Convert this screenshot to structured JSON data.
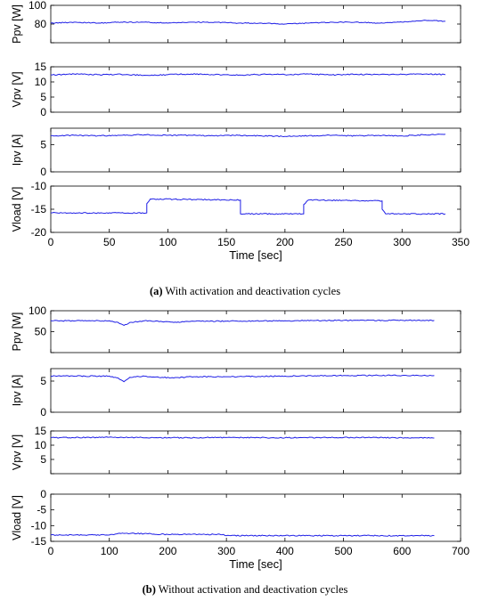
{
  "colors": {
    "series": "#1f1fe6",
    "axis": "#000000",
    "background": "#ffffff"
  },
  "chart_data": [
    {
      "type": "line",
      "panel": "a",
      "ylabel": "Ppv [W]",
      "ylim": [
        60,
        100
      ],
      "yticks": [
        60,
        80,
        100
      ],
      "ytick_labels": [
        "",
        "80",
        "100"
      ],
      "xlim": [
        0,
        350
      ],
      "x": [
        0,
        20,
        40,
        60,
        80,
        100,
        120,
        140,
        160,
        180,
        200,
        220,
        240,
        260,
        280,
        300,
        320,
        337
      ],
      "series": [
        {
          "values": [
            81,
            82,
            81,
            82,
            82,
            81,
            82,
            82,
            81,
            81,
            80,
            81,
            82,
            82,
            81,
            82,
            84,
            83
          ]
        }
      ]
    },
    {
      "type": "line",
      "panel": "a",
      "ylabel": "Vpv [V]",
      "ylim": [
        0,
        15
      ],
      "yticks": [
        0,
        5,
        10,
        15
      ],
      "ytick_labels": [
        "0",
        "5",
        "10",
        "15"
      ],
      "xlim": [
        0,
        350
      ],
      "x": [
        0,
        20,
        40,
        60,
        80,
        100,
        120,
        140,
        160,
        180,
        200,
        220,
        240,
        260,
        280,
        300,
        320,
        337
      ],
      "series": [
        {
          "values": [
            12.3,
            12.6,
            12.4,
            12.5,
            12.2,
            12.4,
            12.6,
            12.4,
            12.2,
            12.5,
            12.4,
            12.6,
            12.3,
            12.5,
            12.4,
            12.5,
            12.6,
            12.4
          ]
        }
      ]
    },
    {
      "type": "line",
      "panel": "a",
      "ylabel": "Ipv [A]",
      "ylim": [
        0,
        8
      ],
      "yticks": [
        0,
        5
      ],
      "ytick_labels": [
        "0",
        "5"
      ],
      "xlim": [
        0,
        350
      ],
      "x": [
        0,
        20,
        40,
        60,
        80,
        100,
        120,
        140,
        160,
        180,
        200,
        220,
        240,
        260,
        280,
        300,
        320,
        337
      ],
      "series": [
        {
          "values": [
            6.6,
            6.7,
            6.6,
            6.7,
            6.8,
            6.7,
            6.7,
            6.6,
            6.7,
            6.6,
            6.5,
            6.6,
            6.7,
            6.6,
            6.7,
            6.6,
            6.8,
            6.9
          ]
        }
      ]
    },
    {
      "type": "line",
      "panel": "a",
      "ylabel": "Vload [V]",
      "ylim": [
        -20,
        -10
      ],
      "yticks": [
        -20,
        -15,
        -10
      ],
      "ytick_labels": [
        "-20",
        "-15",
        "-10"
      ],
      "xlim": [
        0,
        350
      ],
      "xticks": [
        0,
        50,
        100,
        150,
        200,
        250,
        300,
        350
      ],
      "xlabel": "Time [sec]",
      "x": [
        0,
        82,
        82,
        85,
        162,
        162,
        216,
        216,
        220,
        283,
        283,
        286,
        337
      ],
      "series": [
        {
          "values": [
            -15.8,
            -15.8,
            -13.8,
            -12.8,
            -13.0,
            -16.0,
            -16.0,
            -14.0,
            -13.0,
            -13.2,
            -15.0,
            -16.0,
            -16.0
          ]
        }
      ]
    },
    {
      "type": "line",
      "panel": "b",
      "ylabel": "Ppv [W]",
      "ylim": [
        0,
        100
      ],
      "yticks": [
        0,
        50,
        100
      ],
      "ytick_labels": [
        "",
        "50",
        "100"
      ],
      "xlim": [
        0,
        700
      ],
      "x": [
        0,
        100,
        115,
        125,
        135,
        160,
        190,
        210,
        240,
        300,
        400,
        500,
        600,
        655
      ],
      "series": [
        {
          "values": [
            76,
            76,
            72,
            65,
            72,
            76,
            74,
            72,
            75,
            75,
            76,
            77,
            77,
            77
          ]
        }
      ]
    },
    {
      "type": "line",
      "panel": "b",
      "ylabel": "Ipv [A]",
      "ylim": [
        0,
        7
      ],
      "yticks": [
        0,
        5
      ],
      "ytick_labels": [
        "0",
        "5"
      ],
      "xlim": [
        0,
        700
      ],
      "x": [
        0,
        100,
        115,
        125,
        135,
        160,
        190,
        210,
        240,
        300,
        400,
        500,
        600,
        655
      ],
      "series": [
        {
          "values": [
            5.8,
            5.8,
            5.5,
            4.9,
            5.6,
            5.8,
            5.6,
            5.5,
            5.7,
            5.7,
            5.8,
            5.9,
            5.9,
            5.9
          ]
        }
      ]
    },
    {
      "type": "line",
      "panel": "b",
      "ylabel": "Vpv [V]",
      "ylim": [
        0,
        15
      ],
      "yticks": [
        0,
        5,
        10,
        15
      ],
      "ytick_labels": [
        "",
        "5",
        "10",
        "15"
      ],
      "xlim": [
        0,
        700
      ],
      "x": [
        0,
        100,
        200,
        300,
        400,
        500,
        600,
        655
      ],
      "series": [
        {
          "values": [
            12.6,
            12.8,
            12.6,
            12.7,
            12.6,
            12.7,
            12.6,
            12.5
          ]
        }
      ]
    },
    {
      "type": "line",
      "panel": "b",
      "ylabel": "Vload [V]",
      "ylim": [
        -15,
        0
      ],
      "yticks": [
        -15,
        -10,
        -5,
        0
      ],
      "ytick_labels": [
        "-15",
        "-10",
        "-5",
        "0"
      ],
      "xlim": [
        0,
        700
      ],
      "xticks": [
        0,
        100,
        200,
        300,
        400,
        500,
        600,
        700
      ],
      "xlabel": "Time [sec]",
      "x": [
        0,
        100,
        115,
        130,
        200,
        295,
        300,
        400,
        500,
        600,
        655
      ],
      "series": [
        {
          "values": [
            -13.0,
            -13.0,
            -12.5,
            -12.4,
            -12.8,
            -12.8,
            -13.2,
            -13.2,
            -13.2,
            -13.2,
            -13.2
          ]
        }
      ]
    }
  ],
  "captions": [
    {
      "label": "(a)",
      "text": " With activation and deactivation cycles"
    },
    {
      "label": "(b)",
      "text": " Without activation and deactivation cycles"
    }
  ]
}
